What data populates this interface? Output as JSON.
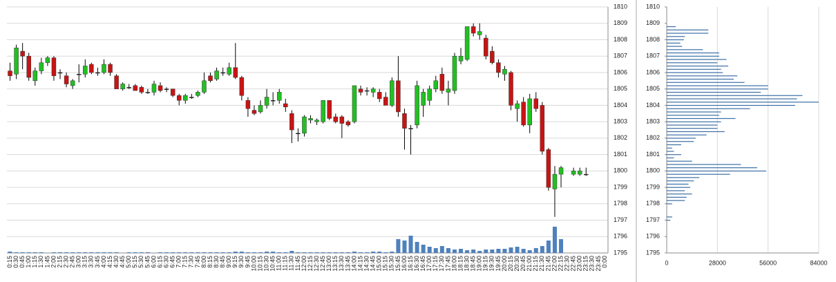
{
  "chart_data": [
    {
      "type": "candlestick",
      "categories": [
        "0:15",
        "0:30",
        "0:45",
        "1:00",
        "1:15",
        "1:30",
        "1:45",
        "2:00",
        "2:15",
        "2:30",
        "2:45",
        "3:00",
        "3:15",
        "3:30",
        "3:45",
        "4:00",
        "4:15",
        "4:30",
        "4:45",
        "5:00",
        "5:15",
        "5:30",
        "5:45",
        "6:00",
        "6:15",
        "6:30",
        "6:45",
        "7:00",
        "7:15",
        "7:30",
        "7:45",
        "8:00",
        "8:15",
        "8:30",
        "8:45",
        "9:00",
        "9:15",
        "9:30",
        "9:45",
        "10:00",
        "10:15",
        "10:30",
        "10:45",
        "11:00",
        "11:15",
        "11:30",
        "11:45",
        "12:00",
        "12:15",
        "12:30",
        "12:45",
        "13:00",
        "13:15",
        "13:30",
        "13:45",
        "14:00",
        "14:15",
        "14:30",
        "14:45",
        "15:00",
        "15:15",
        "15:30",
        "15:45",
        "16:00",
        "16:15",
        "16:30",
        "16:45",
        "17:00",
        "17:15",
        "17:30",
        "17:45",
        "18:00",
        "18:15",
        "18:30",
        "18:45",
        "19:00",
        "19:15",
        "19:30",
        "19:45",
        "20:00",
        "20:15",
        "20:30",
        "20:45",
        "21:00",
        "21:15",
        "21:30",
        "21:45",
        "22:00",
        "22:15",
        "22:30",
        "22:45",
        "23:00",
        "23:15",
        "23:30",
        "23:45",
        "0:00"
      ],
      "open": [
        1806.1,
        1805.9,
        1807.3,
        1807.0,
        1805.5,
        1806.1,
        1806.6,
        1806.9,
        1806.0,
        1805.8,
        1805.2,
        1805.9,
        1805.9,
        1806.5,
        1806.0,
        1806.0,
        1806.5,
        1805.8,
        1805.0,
        1805.1,
        1805.2,
        1805.1,
        1804.8,
        1804.8,
        1805.2,
        1805.0,
        1805.0,
        1804.6,
        1804.3,
        1804.5,
        1804.6,
        1804.8,
        1805.8,
        1805.6,
        1806.0,
        1805.9,
        1806.3,
        1805.7,
        1804.3,
        1803.7,
        1803.6,
        1804.0,
        1804.3,
        1804.3,
        1804.1,
        1803.5,
        1802.3,
        1802.3,
        1803.1,
        1803.0,
        1803.0,
        1804.3,
        1803.3,
        1803.3,
        1803.0,
        1803.0,
        1805.0,
        1804.9,
        1804.8,
        1804.8,
        1804.5,
        1804.0,
        1805.5,
        1803.5,
        1802.6,
        1802.8,
        1804.0,
        1804.3,
        1805.0,
        1805.9,
        1804.8,
        1804.9,
        1806.7,
        1806.8,
        1808.8,
        1808.3,
        1808.1,
        1807.3,
        1806.6,
        1805.9,
        1806.0,
        1803.8,
        1804.2,
        1802.8,
        1804.4,
        1804.0,
        1801.3,
        1798.9,
        1799.8,
        null,
        1799.8,
        1799.8,
        1799.8,
        null,
        null,
        null
      ],
      "high": [
        1806.6,
        1807.7,
        1807.8,
        1807.2,
        1806.3,
        1806.9,
        1807.0,
        1807.0,
        1806.2,
        1806.0,
        1805.6,
        1806.5,
        1806.8,
        1806.6,
        1806.3,
        1806.8,
        1806.6,
        1805.9,
        1805.4,
        1805.3,
        1805.3,
        1805.2,
        1805.0,
        1805.5,
        1805.4,
        1805.1,
        1805.0,
        1804.7,
        1804.7,
        1804.7,
        1804.9,
        1806.0,
        1806.0,
        1806.3,
        1806.3,
        1806.6,
        1807.8,
        1805.8,
        1804.5,
        1804.0,
        1804.3,
        1805.0,
        1804.8,
        1805.0,
        1804.4,
        1803.7,
        1802.6,
        1803.4,
        1803.4,
        1803.2,
        1804.3,
        1804.3,
        1803.5,
        1803.4,
        1803.1,
        1805.2,
        1805.2,
        1805.1,
        1805.1,
        1805.0,
        1804.8,
        1805.7,
        1807.0,
        1803.8,
        1802.8,
        1805.5,
        1805.0,
        1805.2,
        1805.8,
        1806.3,
        1805.5,
        1807.2,
        1807.5,
        1808.8,
        1809.0,
        1809.0,
        1808.3,
        1807.6,
        1806.8,
        1806.4,
        1806.1,
        1804.3,
        1804.5,
        1804.7,
        1804.8,
        1804.2,
        1801.4,
        1800.3,
        1800.3,
        null,
        1800.2,
        1800.2,
        1800.2,
        null,
        null,
        null
      ],
      "low": [
        1805.5,
        1805.6,
        1806.2,
        1805.5,
        1805.2,
        1805.9,
        1806.4,
        1805.5,
        1805.6,
        1805.1,
        1805.0,
        1805.4,
        1805.7,
        1805.9,
        1805.8,
        1805.9,
        1805.8,
        1805.0,
        1804.9,
        1805.0,
        1804.9,
        1804.7,
        1804.7,
        1804.6,
        1804.8,
        1804.8,
        1804.5,
        1804.0,
        1804.1,
        1804.4,
        1804.5,
        1804.7,
        1805.4,
        1805.5,
        1805.8,
        1805.8,
        1805.6,
        1804.3,
        1803.3,
        1803.4,
        1803.5,
        1803.8,
        1804.0,
        1804.1,
        1803.6,
        1801.7,
        1801.8,
        1802.1,
        1802.9,
        1802.8,
        1802.9,
        1803.1,
        1802.9,
        1802.0,
        1802.7,
        1802.9,
        1804.6,
        1804.6,
        1804.5,
        1804.2,
        1804.0,
        1803.9,
        1803.3,
        1801.3,
        1801.0,
        1802.6,
        1803.3,
        1804.0,
        1804.8,
        1804.7,
        1804.0,
        1804.7,
        1806.5,
        1806.7,
        1808.2,
        1808.0,
        1806.8,
        1806.5,
        1805.7,
        1805.5,
        1803.7,
        1803.0,
        1802.7,
        1802.3,
        1803.6,
        1801.0,
        1798.8,
        1797.2,
        1799.0,
        null,
        1799.7,
        1799.7,
        1799.7,
        null,
        null,
        null
      ],
      "close": [
        1805.8,
        1807.5,
        1807.0,
        1805.7,
        1806.1,
        1806.6,
        1806.9,
        1805.8,
        1806.0,
        1805.3,
        1805.5,
        1805.9,
        1806.4,
        1806.0,
        1806.0,
        1806.5,
        1806.0,
        1805.0,
        1805.3,
        1805.1,
        1804.9,
        1804.8,
        1804.8,
        1805.3,
        1804.9,
        1805.0,
        1804.6,
        1804.3,
        1804.6,
        1804.5,
        1804.8,
        1805.5,
        1805.5,
        1806.1,
        1806.0,
        1806.3,
        1805.7,
        1804.6,
        1803.8,
        1803.5,
        1804.0,
        1804.5,
        1804.3,
        1804.8,
        1803.9,
        1802.5,
        1802.3,
        1803.3,
        1803.2,
        1803.1,
        1804.3,
        1803.2,
        1803.0,
        1802.9,
        1802.8,
        1805.2,
        1804.8,
        1804.9,
        1805.0,
        1804.4,
        1804.0,
        1805.5,
        1803.6,
        1802.6,
        1802.6,
        1805.2,
        1804.8,
        1805.0,
        1805.5,
        1804.9,
        1805.0,
        1807.0,
        1807.0,
        1808.8,
        1808.4,
        1808.5,
        1807.0,
        1806.6,
        1806.0,
        1806.2,
        1804.0,
        1804.1,
        1802.8,
        1804.4,
        1803.8,
        1801.2,
        1799.0,
        1799.8,
        1800.2,
        null,
        1800.0,
        1800.0,
        1799.8,
        null,
        null,
        null
      ],
      "volume": [
        2,
        1,
        1,
        1,
        1,
        1,
        0,
        1,
        1,
        1,
        1,
        1,
        1,
        1,
        1,
        1,
        1,
        1,
        0,
        1,
        1,
        1,
        1,
        0,
        1,
        1,
        1,
        1,
        1,
        1,
        1,
        1,
        1,
        1,
        1,
        1,
        2,
        2,
        1,
        1,
        1,
        2,
        2,
        1,
        1,
        3,
        1,
        1,
        1,
        1,
        1,
        1,
        1,
        1,
        1,
        2,
        1,
        1,
        2,
        2,
        1,
        2,
        20,
        18,
        25,
        16,
        12,
        9,
        7,
        10,
        7,
        5,
        6,
        4,
        5,
        3,
        5,
        5,
        6,
        6,
        8,
        9,
        6,
        4,
        7,
        10,
        18,
        38,
        20,
        0,
        0,
        0,
        0,
        0,
        0,
        0
      ],
      "volume_lim": [
        0,
        100
      ],
      "up_color": "#22c022",
      "down_color": "#c81414",
      "volume_color": "#4f81bd",
      "ylim": [
        1795,
        1810
      ],
      "yticks": [
        1795,
        1796,
        1797,
        1798,
        1799,
        1800,
        1801,
        1802,
        1803,
        1804,
        1805,
        1806,
        1807,
        1808,
        1809,
        1810
      ],
      "grid": true
    },
    {
      "type": "barh",
      "prices": [
        1808.8,
        1808.6,
        1808.4,
        1808.2,
        1808.0,
        1807.8,
        1807.6,
        1807.4,
        1807.2,
        1807.0,
        1806.8,
        1806.6,
        1806.4,
        1806.2,
        1806.0,
        1805.8,
        1805.6,
        1805.4,
        1805.2,
        1805.0,
        1804.8,
        1804.6,
        1804.4,
        1804.2,
        1804.0,
        1803.8,
        1803.6,
        1803.4,
        1803.2,
        1803.0,
        1802.8,
        1802.6,
        1802.4,
        1802.2,
        1802.0,
        1801.8,
        1801.6,
        1801.4,
        1801.2,
        1801.0,
        1800.8,
        1800.6,
        1800.4,
        1800.2,
        1800.0,
        1799.8,
        1799.6,
        1799.4,
        1799.2,
        1799.0,
        1798.8,
        1798.6,
        1798.4,
        1798.2,
        1798.0,
        1797.2,
        1797.0
      ],
      "values": [
        5000,
        23000,
        23000,
        10000,
        9500,
        7500,
        8500,
        20000,
        29000,
        29000,
        33000,
        28000,
        34000,
        30000,
        31000,
        39000,
        37000,
        43000,
        56000,
        56000,
        52000,
        75000,
        72000,
        84000,
        71000,
        46000,
        30000,
        29000,
        38000,
        30000,
        28000,
        28000,
        32000,
        22000,
        16000,
        15000,
        8000,
        3000,
        4000,
        8000,
        4000,
        14000,
        41000,
        50000,
        55000,
        35000,
        18000,
        15000,
        12000,
        13000,
        10000,
        14000,
        11000,
        10000,
        3000,
        3000,
        2000
      ],
      "color": "#3a6ea5",
      "ylim": [
        1795,
        1810
      ],
      "yticks": [
        1795,
        1796,
        1797,
        1798,
        1799,
        1800,
        1801,
        1802,
        1803,
        1804,
        1805,
        1806,
        1807,
        1808,
        1809,
        1810
      ],
      "xlim": [
        0,
        84000
      ],
      "xticks": [
        0,
        28000,
        56000,
        84000
      ],
      "grid": true
    }
  ]
}
